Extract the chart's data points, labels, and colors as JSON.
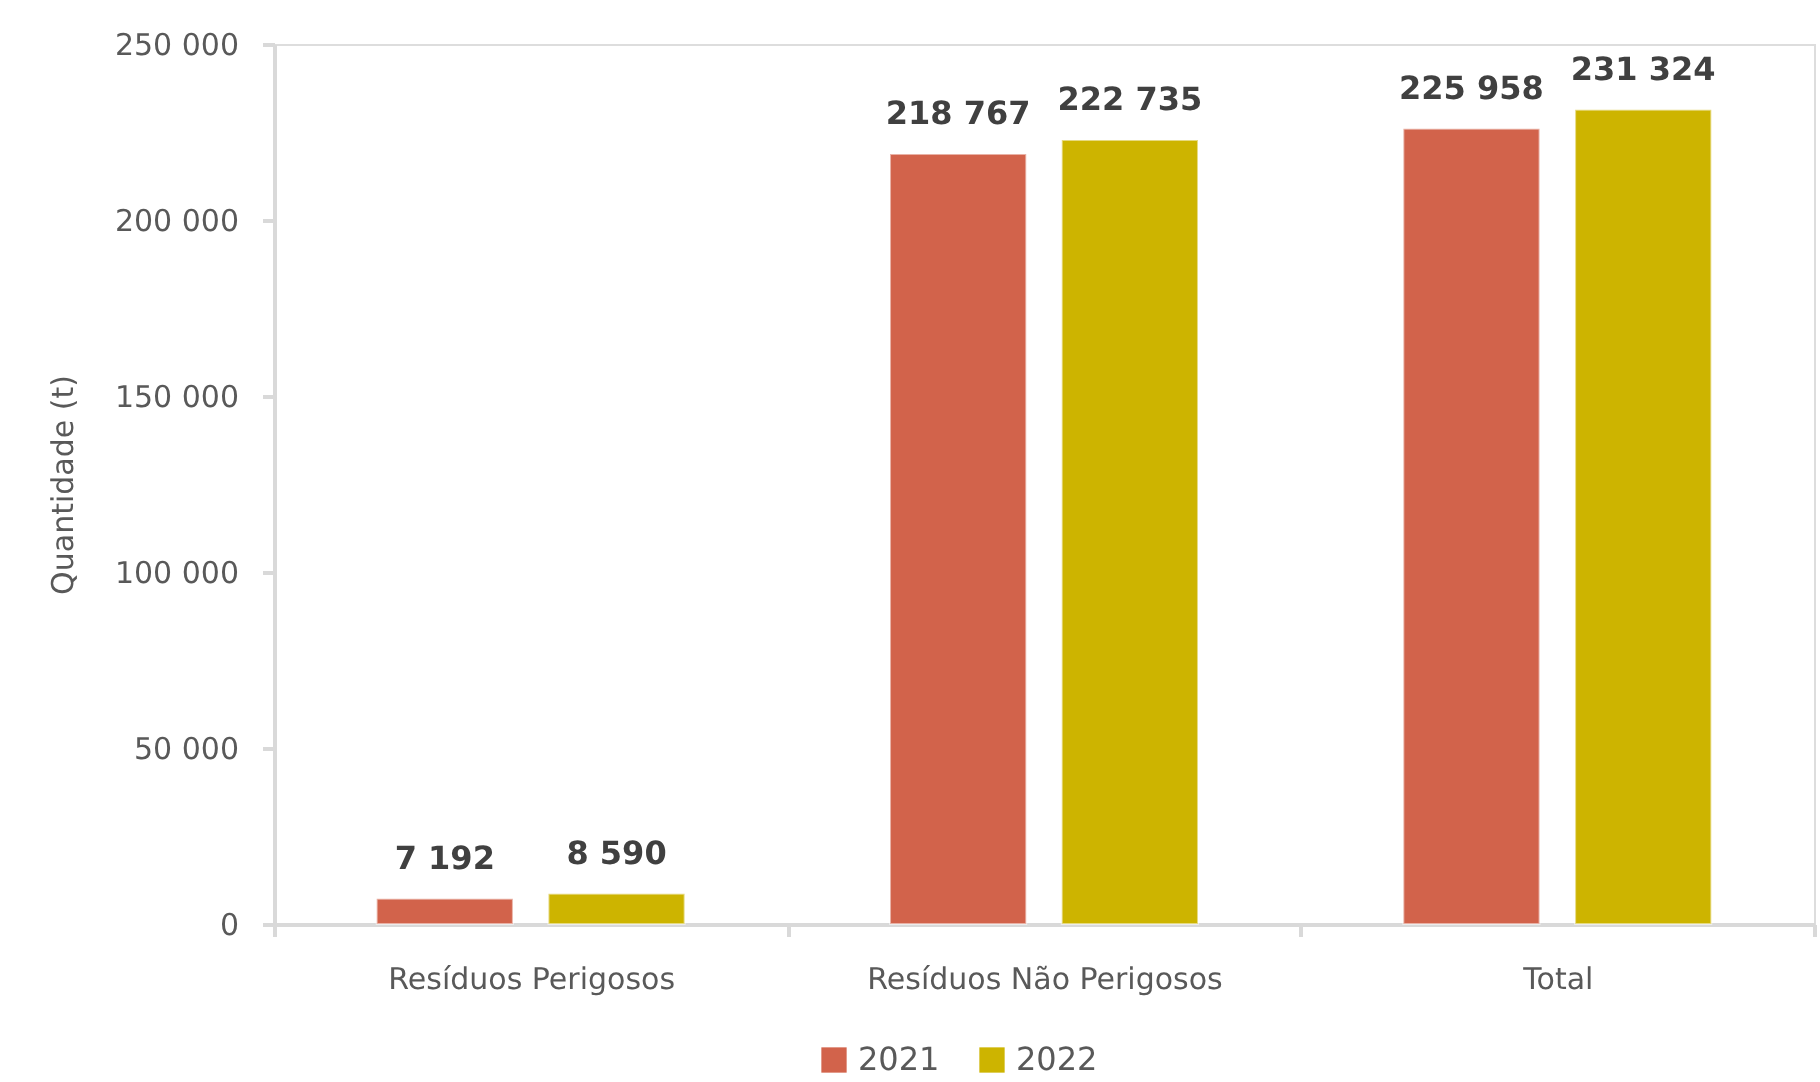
{
  "chart_data": {
    "type": "bar",
    "ylabel": "Quantidade (t)",
    "categories": [
      "Resíduos Perigosos",
      "Resíduos Não Perigosos",
      "Total"
    ],
    "series": [
      {
        "name": "2021",
        "color": "#d2634b",
        "values": [
          7192,
          218767,
          225958
        ],
        "value_labels": [
          "7 192",
          "218 767",
          "225 958"
        ]
      },
      {
        "name": "2022",
        "color": "#cdb400",
        "values": [
          8590,
          222735,
          231324
        ],
        "value_labels": [
          "8 590",
          "222 735",
          "231 324"
        ]
      }
    ],
    "ylim": [
      0,
      250000
    ],
    "yticks": [
      0,
      {
        "value": 50000,
        "label": "50 000"
      },
      {
        "value": 100000,
        "label": "100 000"
      },
      {
        "value": 150000,
        "label": "150 000"
      },
      {
        "value": 200000,
        "label": "200 000"
      },
      {
        "value": 250000,
        "label": "250 000"
      }
    ],
    "grid": false,
    "legend": "bottom"
  }
}
